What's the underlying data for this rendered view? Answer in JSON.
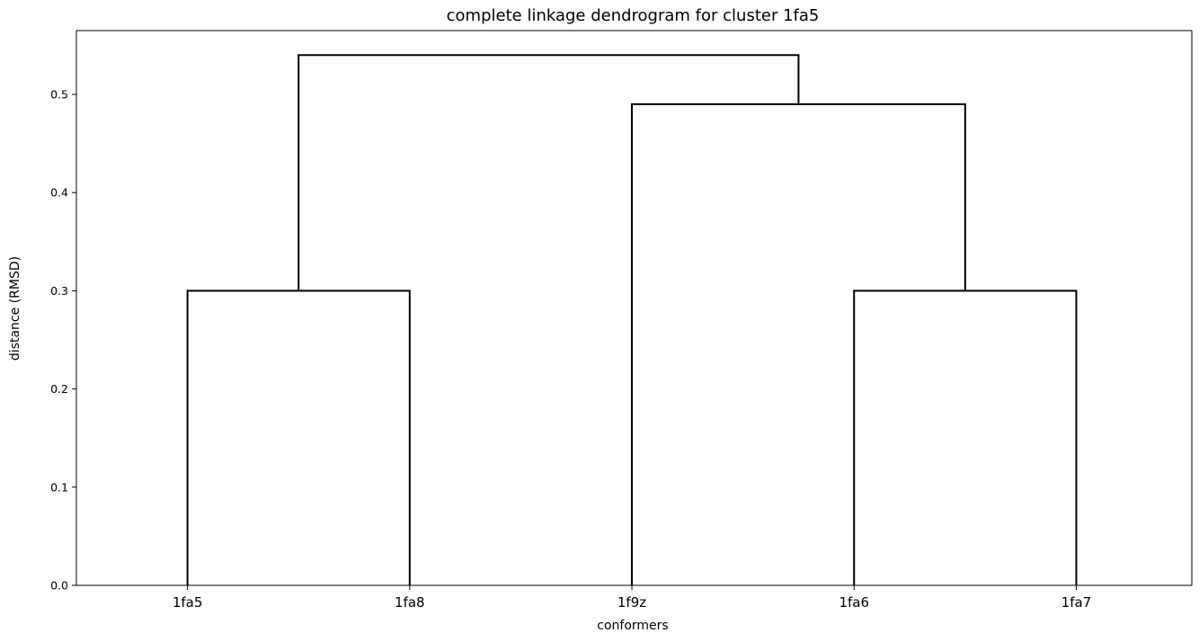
{
  "chart_data": {
    "type": "dendrogram",
    "title": "complete linkage dendrogram for cluster 1fa5",
    "xlabel": "conformers",
    "ylabel": "distance (RMSD)",
    "ylim": [
      0,
      0.565
    ],
    "yticks": [
      "0.0",
      "0.1",
      "0.2",
      "0.3",
      "0.4",
      "0.5"
    ],
    "leaves": [
      "1fa5",
      "1fa8",
      "1f9z",
      "1fa6",
      "1fa7"
    ],
    "merges": [
      {
        "left": "1fa5",
        "right": "1fa8",
        "height": 0.3
      },
      {
        "left": "1fa6",
        "right": "1fa7",
        "height": 0.3
      },
      {
        "left": "1f9z",
        "right": "(1fa6, 1fa7)",
        "height": 0.49
      },
      {
        "left": "(1fa5, 1fa8)",
        "right": "(1f9z, (1fa6, 1fa7))",
        "height": 0.54
      }
    ],
    "grid": false,
    "link_color": "#000000"
  }
}
